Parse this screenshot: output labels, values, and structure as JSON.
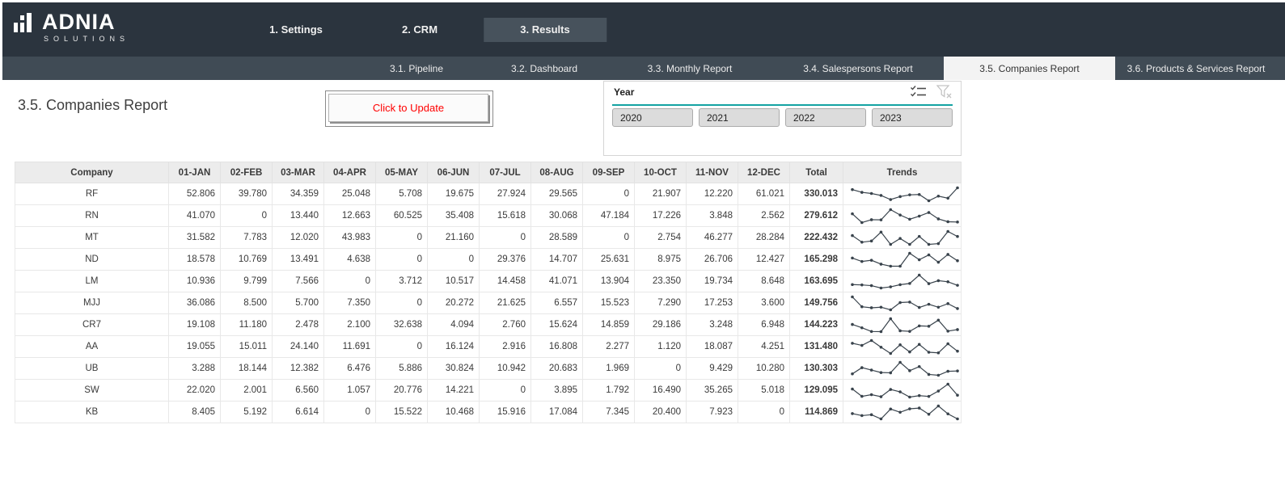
{
  "brand": {
    "name": "ADNIA",
    "subtitle": "SOLUTIONS"
  },
  "top_nav": {
    "items": [
      {
        "id": "settings",
        "label": "1. Settings",
        "active": false
      },
      {
        "id": "crm",
        "label": "2. CRM",
        "active": false
      },
      {
        "id": "results",
        "label": "3. Results",
        "active": true
      }
    ]
  },
  "sub_nav": {
    "items": [
      {
        "id": "pipeline",
        "label": "3.1. Pipeline",
        "active": false
      },
      {
        "id": "dashboard",
        "label": "3.2. Dashboard",
        "active": false
      },
      {
        "id": "monthly-report",
        "label": "3.3. Monthly Report",
        "active": false
      },
      {
        "id": "salespersons-report",
        "label": "3.4. Salespersons Report",
        "active": false
      },
      {
        "id": "companies-report",
        "label": "3.5. Companies Report",
        "active": true
      },
      {
        "id": "products-services-report",
        "label": "3.6. Products & Services Report",
        "active": false
      }
    ]
  },
  "page": {
    "title": "3.5. Companies Report"
  },
  "update_button": {
    "label": "Click to Update",
    "text_color": "#FF0000"
  },
  "slicer": {
    "title": "Year",
    "options": [
      "2020",
      "2021",
      "2022",
      "2023"
    ],
    "icons": [
      "multi-select-icon",
      "clear-filter-icon"
    ],
    "accent_color": "#14A3A3"
  },
  "report": {
    "columns": [
      "Company",
      "01-JAN",
      "02-FEB",
      "03-MAR",
      "04-APR",
      "05-MAY",
      "06-JUN",
      "07-JUL",
      "08-AUG",
      "09-SEP",
      "10-OCT",
      "11-NOV",
      "12-DEC",
      "Total",
      "Trends"
    ],
    "rows": [
      {
        "company": "RF",
        "values": [
          "52.806",
          "39.780",
          "34.359",
          "25.048",
          "5.708",
          "19.675",
          "27.924",
          "29.565",
          "0",
          "21.907",
          "12.220",
          "61.021"
        ],
        "total": "330.013"
      },
      {
        "company": "RN",
        "values": [
          "41.070",
          "0",
          "13.440",
          "12.663",
          "60.525",
          "35.408",
          "15.618",
          "30.068",
          "47.184",
          "17.226",
          "3.848",
          "2.562"
        ],
        "total": "279.612"
      },
      {
        "company": "MT",
        "values": [
          "31.582",
          "7.783",
          "12.020",
          "43.983",
          "0",
          "21.160",
          "0",
          "28.589",
          "0",
          "2.754",
          "46.277",
          "28.284"
        ],
        "total": "222.432"
      },
      {
        "company": "ND",
        "values": [
          "18.578",
          "10.769",
          "13.491",
          "4.638",
          "0",
          "0",
          "29.376",
          "14.707",
          "25.631",
          "8.975",
          "26.706",
          "12.427"
        ],
        "total": "165.298"
      },
      {
        "company": "LM",
        "values": [
          "10.936",
          "9.799",
          "7.566",
          "0",
          "3.712",
          "10.517",
          "14.458",
          "41.071",
          "13.904",
          "23.350",
          "19.734",
          "8.648"
        ],
        "total": "163.695"
      },
      {
        "company": "MJJ",
        "values": [
          "36.086",
          "8.500",
          "5.700",
          "7.350",
          "0",
          "20.272",
          "21.625",
          "6.557",
          "15.523",
          "7.290",
          "17.253",
          "3.600"
        ],
        "total": "149.756"
      },
      {
        "company": "CR7",
        "values": [
          "19.108",
          "11.180",
          "2.478",
          "2.100",
          "32.638",
          "4.094",
          "2.760",
          "15.624",
          "14.859",
          "29.186",
          "3.248",
          "6.948"
        ],
        "total": "144.223"
      },
      {
        "company": "AA",
        "values": [
          "19.055",
          "15.011",
          "24.140",
          "11.691",
          "0",
          "16.124",
          "2.916",
          "16.808",
          "2.277",
          "1.120",
          "18.087",
          "4.251"
        ],
        "total": "131.480"
      },
      {
        "company": "UB",
        "values": [
          "3.288",
          "18.144",
          "12.382",
          "6.476",
          "5.886",
          "30.824",
          "10.942",
          "20.683",
          "1.969",
          "0",
          "9.429",
          "10.280"
        ],
        "total": "130.303"
      },
      {
        "company": "SW",
        "values": [
          "22.020",
          "2.001",
          "6.560",
          "1.057",
          "20.776",
          "14.221",
          "0",
          "3.895",
          "1.792",
          "16.490",
          "35.265",
          "5.018"
        ],
        "total": "129.095"
      },
      {
        "company": "KB",
        "values": [
          "8.405",
          "5.192",
          "6.614",
          "0",
          "15.522",
          "10.468",
          "15.916",
          "17.084",
          "7.345",
          "20.400",
          "7.923",
          "0"
        ],
        "total": "114.869"
      }
    ]
  },
  "colors": {
    "topbar": "#2B343E",
    "subnav": "#404B55",
    "active_top_tab": "#47525C",
    "active_sub_tab_bg": "#F3F3F3",
    "table_header_bg": "#ECECEC",
    "sparkline": "#39434C",
    "button_text": "#FF0000",
    "slicer_accent": "#14A3A3"
  }
}
